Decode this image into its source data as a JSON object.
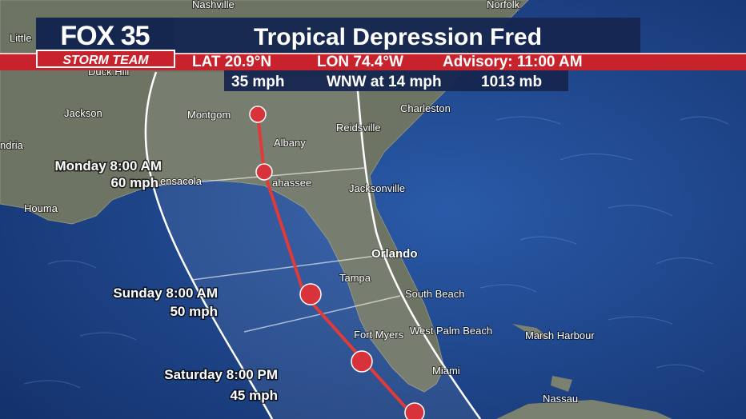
{
  "header": {
    "logo_top": "FOX 35",
    "logo_bottom": "STORM TEAM",
    "title": "Tropical Depression Fred",
    "info_line_1": [
      "LAT 20.9°N",
      "LON 74.4°W",
      "Advisory: 11:00 AM"
    ],
    "info_line_2": [
      "35 mph",
      "WNW at 14 mph",
      "1013 mb"
    ]
  },
  "forecast_points": [
    {
      "time": "Monday 8:00 AM",
      "wind": "60 mph"
    },
    {
      "time": "Sunday 8:00 AM",
      "wind": "50 mph"
    },
    {
      "time": "Saturday 8:00 PM",
      "wind": "45 mph"
    }
  ],
  "cities": [
    "Nashville",
    "Norfolk",
    "Little",
    "Duck Hill",
    "Jackson",
    "Montgom",
    "Charleston",
    "Reidsville",
    "Albany",
    "ndria",
    "ensacola",
    "ahassee",
    "Jacksonville",
    "Houma",
    "Orlando",
    "Tampa",
    "South Beach",
    "Fort Myers",
    "West Palm Beach",
    "Marsh Harbour",
    "Miami",
    "Nassau"
  ]
}
